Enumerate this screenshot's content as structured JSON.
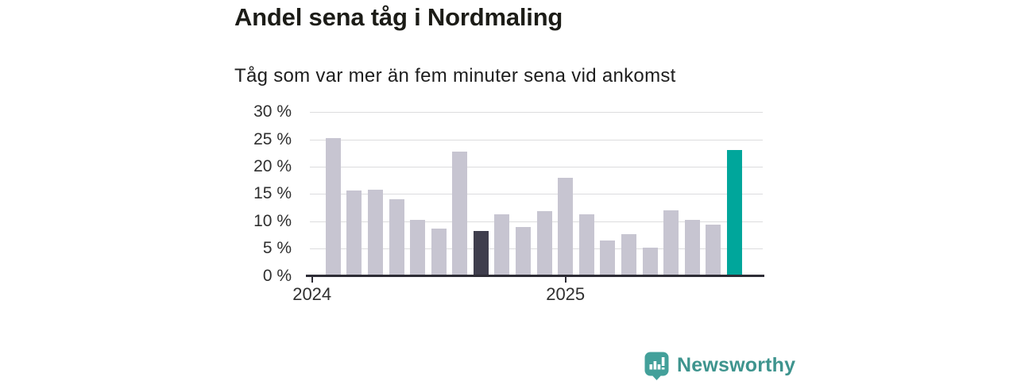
{
  "page": {
    "background": "#ffffff"
  },
  "header": {
    "title": "Andel sena tåg i Nordmaling",
    "subtitle": "Tåg som var mer än fem minuter sena vid ankomst"
  },
  "chart_data": {
    "type": "bar",
    "title": "Andel sena tåg i Nordmaling",
    "subtitle": "Tåg som var mer än fem minuter sena vid ankomst",
    "unit": "percent",
    "categories": [
      "2024-02",
      "2024-03",
      "2024-04",
      "2024-05",
      "2024-06",
      "2024-07",
      "2024-08",
      "2024-09",
      "2024-10",
      "2024-11",
      "2024-12",
      "2025-01",
      "2025-02",
      "2025-03",
      "2025-04",
      "2025-05",
      "2025-06",
      "2025-07",
      "2025-08",
      "2025-09"
    ],
    "values": [
      25.0,
      15.4,
      15.6,
      13.8,
      10.1,
      8.5,
      22.6,
      8.0,
      11.0,
      8.7,
      11.6,
      17.7,
      11.1,
      6.2,
      7.5,
      5.0,
      11.8,
      10.1,
      9.2,
      22.8
    ],
    "bar_default_color": "#c7c5d1",
    "color_overrides": [
      {
        "category": "2024-09",
        "color": "#3f3e4d"
      },
      {
        "category": "2025-09",
        "color": "#00a69b"
      }
    ],
    "first_bar_month_offset": 1,
    "ylim": [
      0,
      30
    ],
    "yticks": [
      0,
      5,
      10,
      15,
      20,
      25,
      30
    ],
    "ytick_labels": [
      "0 %",
      "5 %",
      "10 %",
      "15 %",
      "20 %",
      "25 %",
      "30 %"
    ],
    "xticks": [
      {
        "label": "2024",
        "month_offset": 0
      },
      {
        "label": "2025",
        "month_offset": 12
      }
    ],
    "grid": true,
    "legend": "none",
    "axis_color": "#2e2d36",
    "gridline_color": "#dcdcde",
    "label_color": "#2f2f2f"
  },
  "branding": {
    "logo_text": "Newsworthy",
    "logo_icon": "newsworthy-chart-bubble-icon",
    "logo_text_color": "#3e948e",
    "logo_icon_color": "#43a09a"
  }
}
